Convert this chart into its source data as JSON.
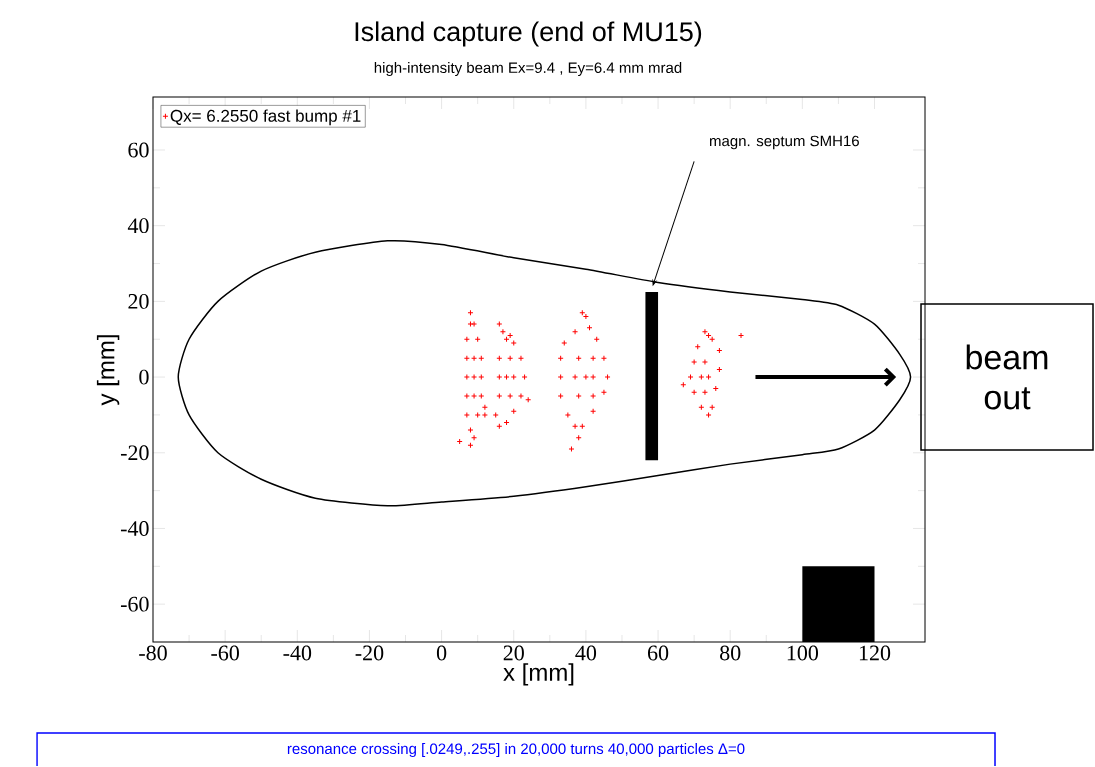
{
  "chart_data": {
    "type": "scatter",
    "title": "Island capture (end of MU15)",
    "subtitle": "high-intensity beam Ex=9.4 , Ey=6.4 mm mrad",
    "xlabel": "x [mm]",
    "ylabel": "y [mm]",
    "xlim": [
      -80,
      134
    ],
    "ylim": [
      -70,
      74
    ],
    "xticks": [
      -80,
      -60,
      -40,
      -20,
      0,
      20,
      40,
      60,
      80,
      100,
      120
    ],
    "yticks": [
      -60,
      -40,
      -20,
      0,
      20,
      40,
      60
    ],
    "grid": false,
    "legend": "top left",
    "annotations": [
      "magn. septum SMH16",
      "beam out",
      "resonance crossing [.0249,.255] in 20,000 turns    40,000 particles   Δ=0"
    ],
    "series": [
      {
        "name": "Qx= 6.2550 fast bump #1",
        "color": "#ff0000",
        "marker": "cross",
        "x": [
          8,
          8,
          7,
          7,
          7,
          7,
          7,
          8,
          8,
          9,
          10,
          11,
          11,
          11,
          10,
          9,
          9,
          9,
          9,
          5,
          12,
          16,
          17,
          18,
          19,
          20,
          22,
          23,
          22,
          20,
          18,
          16,
          15,
          16,
          16,
          16,
          18,
          20,
          19,
          19,
          24,
          12,
          39,
          40,
          37,
          34,
          33,
          33,
          33,
          35,
          37,
          38,
          39,
          42,
          45,
          46,
          45,
          43,
          41,
          37,
          40,
          42,
          38,
          38,
          42,
          42,
          36,
          73,
          74,
          71,
          70,
          69,
          70,
          72,
          74,
          75,
          76,
          77,
          77,
          75,
          72,
          74,
          73,
          73,
          83,
          67
        ],
        "values": [
          17,
          14,
          10,
          5,
          0,
          -5,
          -10,
          -14,
          -18,
          -16,
          -10,
          -5,
          0,
          5,
          10,
          14,
          0,
          5,
          -5,
          -17,
          -8,
          14,
          12,
          10,
          11,
          9,
          5,
          0,
          -5,
          -9,
          -12,
          -13,
          -10,
          -5,
          0,
          5,
          0,
          0,
          5,
          -5,
          -6,
          -10,
          17,
          16,
          12,
          9,
          5,
          0,
          -5,
          -10,
          -13,
          -16,
          -13,
          -9,
          -4,
          0,
          5,
          10,
          13,
          0,
          0,
          0,
          5,
          -5,
          5,
          -5,
          -19,
          12,
          11,
          8,
          4,
          0,
          -4,
          -8,
          -10,
          -8,
          -3,
          2,
          7,
          10,
          0,
          0,
          4,
          -4,
          11,
          -2
        ]
      }
    ]
  }
}
